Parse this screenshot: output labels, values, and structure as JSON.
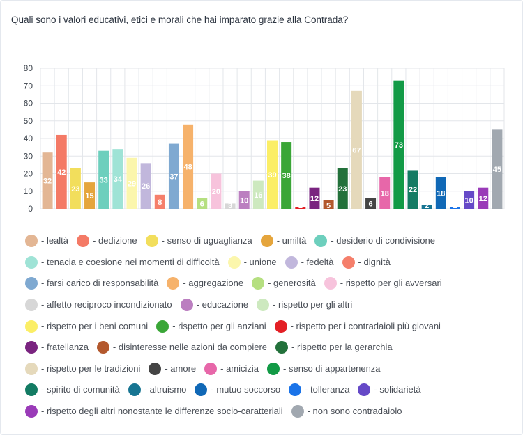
{
  "question": "Quali sono i valori educativi, etici e morali che hai imparato grazie alla Contrada?",
  "chart_data": {
    "type": "bar",
    "ylim": [
      0,
      80
    ],
    "yticks": [
      0,
      10,
      20,
      30,
      40,
      50,
      60,
      70,
      80
    ],
    "grid": true,
    "legend_position": "bottom",
    "series": [
      {
        "name": "- lealtà",
        "value": 32,
        "color": "#e3b694"
      },
      {
        "name": "- dedizione",
        "value": 42,
        "color": "#f47a66"
      },
      {
        "name": "- senso di uguaglianza",
        "value": 23,
        "color": "#f2de5c"
      },
      {
        "name": "- umiltà",
        "value": 15,
        "color": "#e5a53c"
      },
      {
        "name": "- desiderio di condivisione",
        "value": 33,
        "color": "#6dcfbd"
      },
      {
        "name": "- tenacia e coesione nei momenti di difficoltà",
        "value": 34,
        "color": "#9fe3d6"
      },
      {
        "name": "- unione",
        "value": 29,
        "color": "#fbf6ac"
      },
      {
        "name": "- fedeltà",
        "value": 26,
        "color": "#c1b7dc"
      },
      {
        "name": "- dignità",
        "value": 8,
        "color": "#f57f6b"
      },
      {
        "name": "- farsi carico di responsabilità",
        "value": 37,
        "color": "#7fa9d1"
      },
      {
        "name": "- aggregazione",
        "value": 48,
        "color": "#f6b26b"
      },
      {
        "name": "- generosità",
        "value": 6,
        "color": "#b5df80"
      },
      {
        "name": "- rispetto per gli avversari",
        "value": 20,
        "color": "#f7c3dc"
      },
      {
        "name": "- affetto reciproco incondizionato",
        "value": 3,
        "color": "#d7d7d7"
      },
      {
        "name": "- educazione",
        "value": 10,
        "color": "#bb7fc0"
      },
      {
        "name": "- rispetto per gli altri",
        "value": 16,
        "color": "#cde9bf"
      },
      {
        "name": "- rispetto per i beni comuni",
        "value": 39,
        "color": "#fbee66"
      },
      {
        "name": "- rispetto per gli anziani",
        "value": 38,
        "color": "#3aa637"
      },
      {
        "name": "- rispetto per i contradaioli più giovani",
        "value": 1,
        "color": "#e31f25"
      },
      {
        "name": "- fratellanza",
        "value": 12,
        "color": "#7a2480"
      },
      {
        "name": "- disinteresse nelle azioni da compiere",
        "value": 5,
        "color": "#b3582d"
      },
      {
        "name": "- rispetto per la gerarchia",
        "value": 23,
        "color": "#23713b"
      },
      {
        "name": "- rispetto per le tradizioni",
        "value": 67,
        "color": "#e5d9bb"
      },
      {
        "name": "- amore",
        "value": 6,
        "color": "#444444"
      },
      {
        "name": "- amicizia",
        "value": 18,
        "color": "#e767a9"
      },
      {
        "name": "- senso di appartenenza",
        "value": 73,
        "color": "#129a46"
      },
      {
        "name": "- spirito di comunità",
        "value": 22,
        "color": "#137b63"
      },
      {
        "name": "- altruismo",
        "value": 2,
        "color": "#177592"
      },
      {
        "name": "- mutuo soccorso",
        "value": 18,
        "color": "#1068b6"
      },
      {
        "name": "- tolleranza",
        "value": 1,
        "color": "#1a73e8"
      },
      {
        "name": "- solidarietà",
        "value": 10,
        "color": "#6549c7"
      },
      {
        "name": "- rispetto degli altri nonostante le differenze socio-caratteriali",
        "value": 12,
        "color": "#9a3bb8"
      },
      {
        "name": "- non sono contradaiolo",
        "value": 45,
        "color": "#a1a8b0"
      }
    ]
  }
}
